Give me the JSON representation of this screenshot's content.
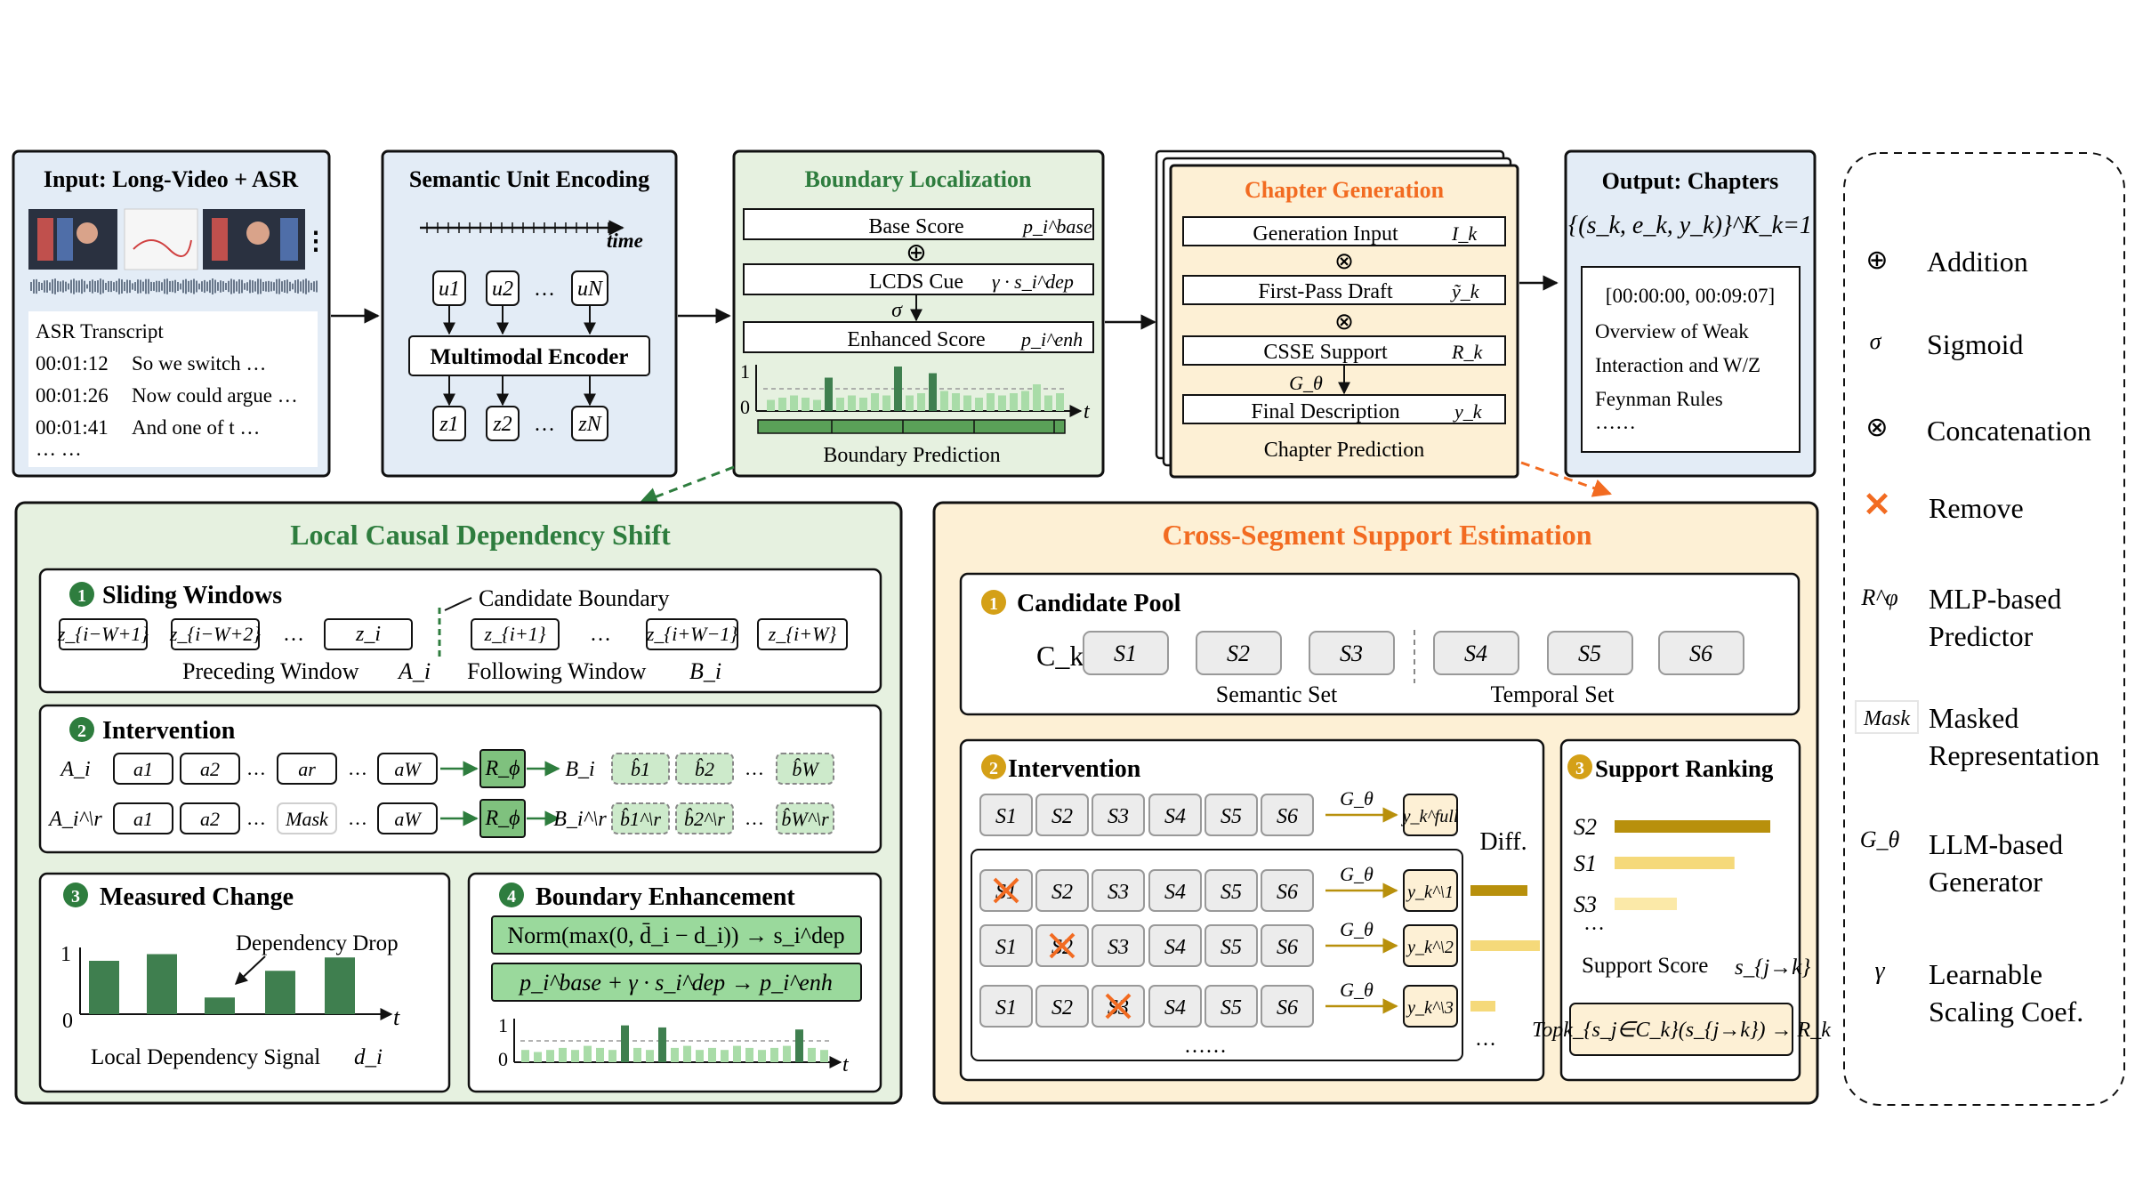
{
  "input_panel": {
    "title": "Input: Long-Video + ASR",
    "ellipsis": "⋮",
    "transcript_title": "ASR Transcript",
    "lines": [
      {
        "time": "00:01:12",
        "text": "So we switch …"
      },
      {
        "time": "00:01:26",
        "text": "Now could argue …"
      },
      {
        "time": "00:01:41",
        "text": "And one of t …"
      }
    ],
    "more": "… …"
  },
  "encoding_panel": {
    "title": "Semantic Unit Encoding",
    "time_label": "time",
    "u_labels": [
      "u1",
      "u2",
      "uN"
    ],
    "dots": "…",
    "encoder_label": "Multimodal Encoder",
    "z_labels": [
      "z1",
      "z2",
      "zN"
    ]
  },
  "boundary_panel": {
    "title": "Boundary Localization",
    "base_score": "Base Score",
    "base_sym": "p_i^base",
    "plus": "⊕",
    "lcds_cue": "LCDS Cue",
    "lcds_sym": "γ · s_i^dep",
    "sigma": "σ",
    "enhanced_score": "Enhanced Score",
    "enhanced_sym": "p_i^enh",
    "y1": "1",
    "y0": "0",
    "t": "t",
    "prediction_label": "Boundary Prediction",
    "bars": [
      0.25,
      0.3,
      0.35,
      0.3,
      0.25,
      0.75,
      0.3,
      0.35,
      0.3,
      0.4,
      0.35,
      1.0,
      0.35,
      0.4,
      0.85,
      0.45,
      0.4,
      0.35,
      0.3,
      0.4,
      0.35,
      0.4,
      0.45,
      0.6,
      0.35,
      0.4
    ]
  },
  "chapter_gen_panel": {
    "title": "Chapter Generation",
    "generation_input": "Generation Input",
    "gi_sym": "I_k",
    "first_pass": "First-Pass Draft",
    "fp_sym": "ỹ_k",
    "csse_support": "CSSE Support",
    "cs_sym": "R_k",
    "g_theta": "G_θ",
    "final_desc": "Final Description",
    "fd_sym": "y_k",
    "prediction_label": "Chapter Prediction",
    "otimes": "⊗"
  },
  "output_panel": {
    "title": "Output: Chapters",
    "formula": "{(s_k, e_k, y_k)}^K_k=1",
    "time_range": "[00:00:00, 00:09:07]",
    "lines": [
      "Overview of Weak",
      "Interaction and W/Z",
      "Feynman Rules",
      "……"
    ]
  },
  "legend": [
    {
      "symbol": "⊕",
      "label1": "Addition",
      "label2": ""
    },
    {
      "symbol": "σ",
      "label1": "Sigmoid",
      "label2": ""
    },
    {
      "symbol": "⊗",
      "label1": "Concatenation",
      "label2": ""
    },
    {
      "symbol": "✕",
      "label1": "Remove",
      "label2": ""
    },
    {
      "symbol": "R^φ",
      "label1": "MLP-based",
      "label2": "Predictor"
    },
    {
      "symbol": "Mask",
      "label1": "Masked",
      "label2": "Representation"
    },
    {
      "symbol": "G_θ",
      "label1": "LLM-based",
      "label2": "Generator"
    },
    {
      "symbol": "γ",
      "label1": "Learnable",
      "label2": "Scaling Coef."
    }
  ],
  "lcds_panel": {
    "title": "Local Causal Dependency Shift",
    "sliding": {
      "number": "1",
      "title": "Sliding Windows",
      "candidate_boundary": "Candidate Boundary",
      "preceding": [
        "z_{i−W+1}",
        "z_{i−W+2}",
        "z_i"
      ],
      "following": [
        "z_{i+1}",
        "z_{i+W−1}",
        "z_{i+W}"
      ],
      "dots": "…",
      "preceding_label": "Preceding Window",
      "preceding_sym": "A_i",
      "following_label": "Following Window",
      "following_sym": "B_i"
    },
    "intervention": {
      "number": "2",
      "title": "Intervention",
      "row1_label": "A_i",
      "row2_label": "A_i^\\r",
      "a_tokens": [
        "a1",
        "a2",
        "ar",
        "aW"
      ],
      "mask": "Mask",
      "r_phi": "R_ϕ",
      "b1_label": "B_i",
      "b2_label": "B_i^\\r",
      "b_hat": [
        "b̂1",
        "b̂2",
        "b̂W"
      ],
      "b_hat_r": [
        "b̂1^\\r",
        "b̂2^\\r",
        "b̂W^\\r"
      ],
      "dots": "…"
    },
    "measured": {
      "number": "3",
      "title": "Measured Change",
      "annotation": "Dependency Drop",
      "y1": "1",
      "y0": "0",
      "t": "t",
      "caption": "Local Dependency Signal",
      "sym": "d_i",
      "bars": [
        0.8,
        0.9,
        0.25,
        0.65,
        0.85
      ]
    },
    "enhancement": {
      "number": "4",
      "title": "Boundary Enhancement",
      "formula1": "Norm(max(0, d̄_i − d_i)) → s_i^dep",
      "formula2": "p_i^base + γ · s_i^dep → p_i^enh",
      "y1": "1",
      "y0": "0",
      "t": "t",
      "bars": [
        0.3,
        0.25,
        0.3,
        0.35,
        0.3,
        0.4,
        0.35,
        0.3,
        0.9,
        0.35,
        0.3,
        0.85,
        0.35,
        0.4,
        0.3,
        0.35,
        0.3,
        0.4,
        0.35,
        0.3,
        0.35,
        0.4,
        0.8,
        0.35,
        0.3
      ]
    }
  },
  "csse_panel": {
    "title": "Cross-Segment Support Estimation",
    "pool": {
      "number": "1",
      "title": "Candidate Pool",
      "ck": "C_k",
      "semantic": [
        "S1",
        "S2",
        "S3"
      ],
      "temporal": [
        "S4",
        "S5",
        "S6"
      ],
      "semantic_label": "Semantic Set",
      "temporal_label": "Temporal Set"
    },
    "intervention": {
      "number": "2",
      "title": "Intervention",
      "segments": [
        "S1",
        "S2",
        "S3",
        "S4",
        "S5",
        "S6"
      ],
      "g_theta": "G_θ",
      "full_out": "y_k^full",
      "diff_label": "Diff.",
      "outputs": [
        "y_k^\\1",
        "y_k^\\2",
        "y_k^\\3"
      ],
      "dots_rows": "……",
      "dots_diff": "…"
    },
    "ranking": {
      "number": "3",
      "title": "Support Ranking",
      "rows": [
        {
          "label": "S2",
          "value": 1.0
        },
        {
          "label": "S1",
          "value": 0.77
        },
        {
          "label": "S3",
          "value": 0.4
        }
      ],
      "dots": "…",
      "score_label": "Support Score",
      "score_sym": "s_{j→k}",
      "topk": "Topk_{s_j∈C_k}(s_{j→k}) → R_k"
    }
  },
  "colors": {
    "blue_bg": "#e3ecf6",
    "green_bg": "#e6f1e0",
    "orange_bg": "#fdf0d5",
    "dark_green": "#2e7d3e",
    "light_green": "#9ad99c",
    "bar_green": "#3f7f4f",
    "orange_title": "#f26b21",
    "gold": "#b8900c",
    "light_gold": "#f5d97a"
  }
}
